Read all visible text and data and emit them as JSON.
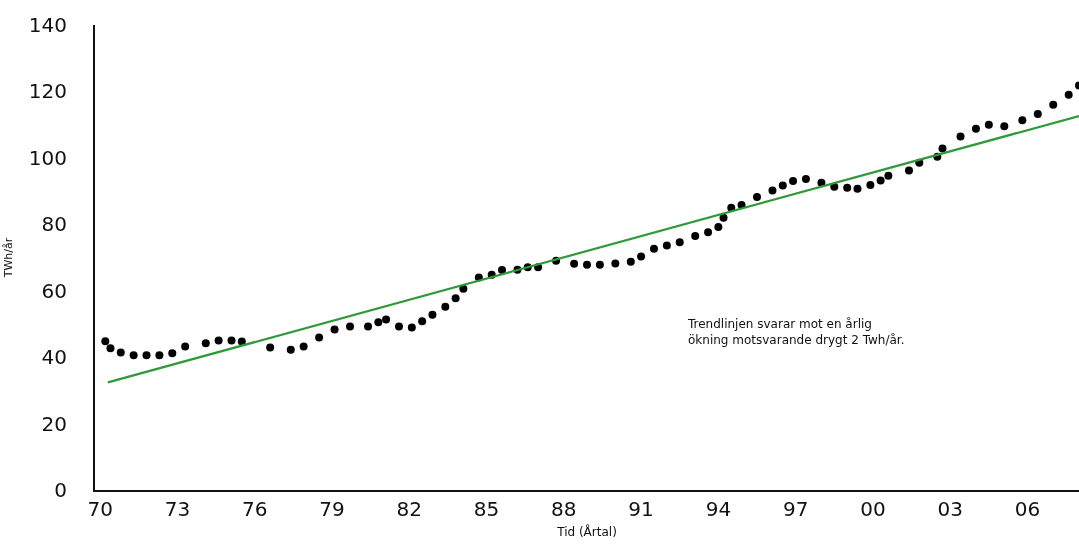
{
  "chart_data": {
    "type": "scatter",
    "xlabel": "Tid (Årtal)",
    "ylabel": "TWh/år",
    "annotations": [
      "Trendlinjen svarar mot en årlig\nökning motsvarande drygt 2 Twh/år."
    ],
    "series": [
      {
        "color": "#000000",
        "marker": "circle",
        "x": [
          1970.2,
          1970.4,
          1970.8,
          1971.3,
          1971.8,
          1972.3,
          1972.8,
          1973.3,
          1974.1,
          1974.6,
          1975.1,
          1975.5,
          1976.6,
          1977.4,
          1977.9,
          1978.5,
          1979.1,
          1979.7,
          1980.4,
          1980.8,
          1981.1,
          1981.6,
          1982.1,
          1982.5,
          1982.9,
          1983.4,
          1983.8,
          1984.1,
          1984.7,
          1985.2,
          1985.6,
          1986.2,
          1986.6,
          1987.0,
          1987.7,
          1988.4,
          1988.9,
          1989.4,
          1990.0,
          1990.6,
          1991.0,
          1991.5,
          1992.0,
          1992.5,
          1993.1,
          1993.6,
          1994.0,
          1994.2,
          1994.5,
          1994.9,
          1995.5,
          1996.1,
          1996.5,
          1996.9,
          1997.4,
          1998.0,
          1998.5,
          1999.0,
          1999.4,
          1999.9,
          2000.3,
          2000.6,
          2001.4,
          2001.8,
          2002.5,
          2002.7,
          2003.4,
          2004.0,
          2004.5,
          2005.1,
          2005.8,
          2006.4,
          2007.0,
          2007.6,
          2008.0
        ],
        "values": [
          44.8,
          42.7,
          41.4,
          40.6,
          40.6,
          40.6,
          41.2,
          43.2,
          44.2,
          45.0,
          45.0,
          44.7,
          42.9,
          42.2,
          43.2,
          45.9,
          48.3,
          49.2,
          49.2,
          50.5,
          51.3,
          49.2,
          48.9,
          50.8,
          52.8,
          55.2,
          57.7,
          60.6,
          64.0,
          64.8,
          66.2,
          66.3,
          67.1,
          67.1,
          69.0,
          68.1,
          67.8,
          67.8,
          68.2,
          68.7,
          70.3,
          72.6,
          73.6,
          74.6,
          76.5,
          77.6,
          79.2,
          82.0,
          85.0,
          85.8,
          88.2,
          90.2,
          91.7,
          93.0,
          93.6,
          92.5,
          91.3,
          91.0,
          90.7,
          91.8,
          93.2,
          94.6,
          96.2,
          98.5,
          100.3,
          102.8,
          106.4,
          108.8,
          110.0,
          109.5,
          111.3,
          113.2,
          116.0,
          119.0,
          121.8
        ]
      },
      {
        "type": "line",
        "color": "#2e9a3a",
        "line_style": "solid",
        "x": [
          1970.3,
          2008.0
        ],
        "values": [
          32.4,
          112.6
        ]
      }
    ],
    "xlim": [
      1969.8,
      2008.0
    ],
    "xticks": [
      {
        "value": 1970,
        "label": "70"
      },
      {
        "value": 1973,
        "label": "73"
      },
      {
        "value": 1976,
        "label": "76"
      },
      {
        "value": 1979,
        "label": "79"
      },
      {
        "value": 1982,
        "label": "82"
      },
      {
        "value": 1985,
        "label": "85"
      },
      {
        "value": 1988,
        "label": "88"
      },
      {
        "value": 1991,
        "label": "91"
      },
      {
        "value": 1994,
        "label": "94"
      },
      {
        "value": 1997,
        "label": "97"
      },
      {
        "value": 2000,
        "label": "00"
      },
      {
        "value": 2003,
        "label": "03"
      },
      {
        "value": 2006,
        "label": "06"
      }
    ],
    "ylim": [
      0,
      140
    ],
    "yticks": [
      0,
      20,
      40,
      60,
      80,
      100,
      120,
      140
    ]
  }
}
